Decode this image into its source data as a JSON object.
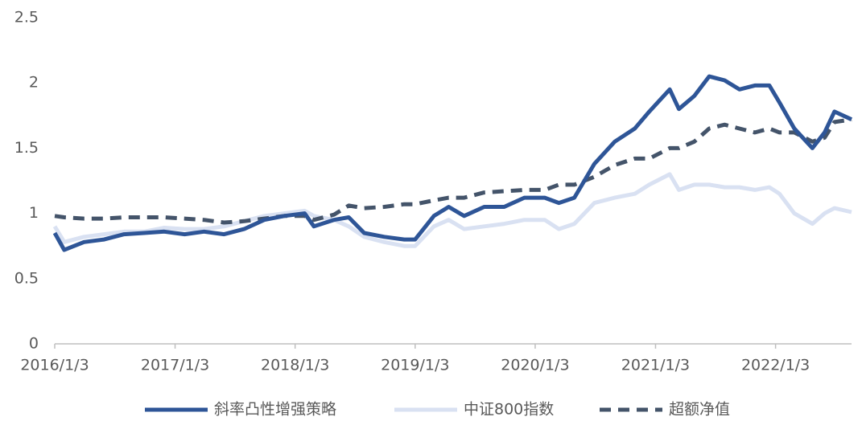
{
  "chart_data": {
    "type": "line",
    "x": [
      "2016/1/3",
      "2016/2/1",
      "2016/4/1",
      "2016/6/1",
      "2016/8/1",
      "2016/10/1",
      "2016/12/1",
      "2017/2/1",
      "2017/4/1",
      "2017/6/1",
      "2017/8/1",
      "2017/10/1",
      "2017/12/1",
      "2018/2/1",
      "2018/3/1",
      "2018/5/1",
      "2018/6/15",
      "2018/8/1",
      "2018/10/1",
      "2018/12/1",
      "2019/1/3",
      "2019/3/1",
      "2019/4/15",
      "2019/6/1",
      "2019/8/1",
      "2019/10/1",
      "2019/12/1",
      "2020/2/1",
      "2020/3/15",
      "2020/5/1",
      "2020/7/1",
      "2020/9/1",
      "2020/11/1",
      "2020/12/15",
      "2021/2/15",
      "2021/3/15",
      "2021/5/1",
      "2021/6/15",
      "2021/8/1",
      "2021/9/15",
      "2021/11/1",
      "2021/12/15",
      "2022/1/15",
      "2022/3/1",
      "2022/4/25",
      "2022/6/1",
      "2022/7/1",
      "2022/8/22"
    ],
    "series": [
      {
        "name": "斜率凸性增强策略",
        "color": "#2e5597",
        "line_style": "solid",
        "values": [
          0.85,
          0.72,
          0.78,
          0.8,
          0.84,
          0.85,
          0.86,
          0.84,
          0.86,
          0.84,
          0.88,
          0.95,
          0.98,
          1.0,
          0.9,
          0.95,
          0.97,
          0.85,
          0.82,
          0.8,
          0.8,
          0.98,
          1.05,
          0.98,
          1.05,
          1.05,
          1.12,
          1.12,
          1.08,
          1.12,
          1.38,
          1.55,
          1.65,
          1.78,
          1.95,
          1.8,
          1.9,
          2.05,
          2.02,
          1.95,
          1.98,
          1.98,
          1.85,
          1.65,
          1.5,
          1.62,
          1.78,
          1.72
        ]
      },
      {
        "name": "中证800指数",
        "color": "#d9e1f2",
        "line_style": "solid",
        "values": [
          0.9,
          0.78,
          0.82,
          0.84,
          0.86,
          0.86,
          0.89,
          0.88,
          0.88,
          0.9,
          0.94,
          0.98,
          1.0,
          1.02,
          0.98,
          0.95,
          0.9,
          0.82,
          0.78,
          0.75,
          0.75,
          0.9,
          0.95,
          0.88,
          0.9,
          0.92,
          0.95,
          0.95,
          0.88,
          0.92,
          1.08,
          1.12,
          1.15,
          1.22,
          1.3,
          1.18,
          1.22,
          1.22,
          1.2,
          1.2,
          1.18,
          1.2,
          1.15,
          1.0,
          0.92,
          1.0,
          1.04,
          1.01
        ]
      },
      {
        "name": "超额净值",
        "color": "#44546a",
        "line_style": "dashed",
        "values": [
          0.98,
          0.97,
          0.96,
          0.96,
          0.97,
          0.97,
          0.97,
          0.96,
          0.95,
          0.93,
          0.94,
          0.96,
          0.98,
          0.98,
          0.95,
          0.99,
          1.06,
          1.04,
          1.05,
          1.07,
          1.07,
          1.1,
          1.12,
          1.12,
          1.16,
          1.17,
          1.18,
          1.18,
          1.22,
          1.22,
          1.28,
          1.37,
          1.42,
          1.42,
          1.5,
          1.5,
          1.55,
          1.65,
          1.68,
          1.65,
          1.62,
          1.65,
          1.62,
          1.62,
          1.55,
          1.58,
          1.7,
          1.72
        ]
      }
    ],
    "xlim": [
      "2016/1/3",
      "2022/8/22"
    ],
    "xticks": [
      "2016/1/3",
      "2017/1/3",
      "2018/1/3",
      "2019/1/3",
      "2020/1/3",
      "2021/1/3",
      "2022/1/3"
    ],
    "ylim": [
      0,
      2.5
    ],
    "yticks": [
      0,
      0.5,
      1,
      1.5,
      2,
      2.5
    ],
    "grid": false,
    "legend": "bottom"
  }
}
